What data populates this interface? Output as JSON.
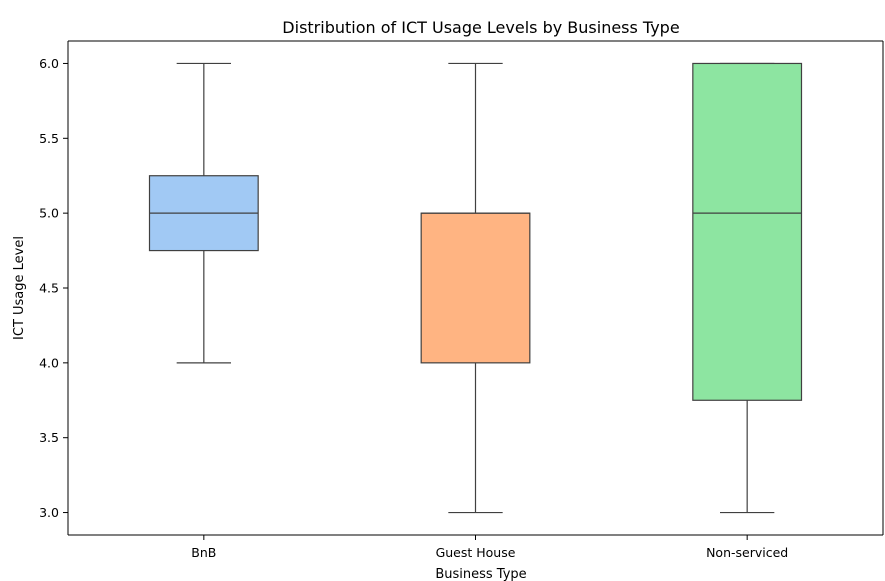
{
  "chart_data": {
    "type": "box",
    "title": "Distribution of ICT Usage Levels by Business Type",
    "xlabel": "Business Type",
    "ylabel": "ICT Usage Level",
    "ylim": [
      2.85,
      6.15
    ],
    "yticks": [
      3.0,
      3.5,
      4.0,
      4.5,
      5.0,
      5.5,
      6.0
    ],
    "ytick_labels": [
      "3.0",
      "3.5",
      "4.0",
      "4.5",
      "5.0",
      "5.5",
      "6.0"
    ],
    "categories": [
      "BnB",
      "Guest House",
      "Non-serviced"
    ],
    "boxes": [
      {
        "category": "BnB",
        "whisker_low": 4.0,
        "q1": 4.75,
        "median": 5.0,
        "q3": 5.25,
        "whisker_high": 6.0,
        "color": "#a1c9f4"
      },
      {
        "category": "Guest House",
        "whisker_low": 3.0,
        "q1": 4.0,
        "median": 5.0,
        "q3": 5.0,
        "whisker_high": 6.0,
        "color": "#ffb482"
      },
      {
        "category": "Non-serviced",
        "whisker_low": 3.0,
        "q1": 3.75,
        "median": 5.0,
        "q3": 6.0,
        "whisker_high": 6.0,
        "color": "#8de5a1"
      }
    ],
    "grid": false,
    "legend": "none"
  }
}
